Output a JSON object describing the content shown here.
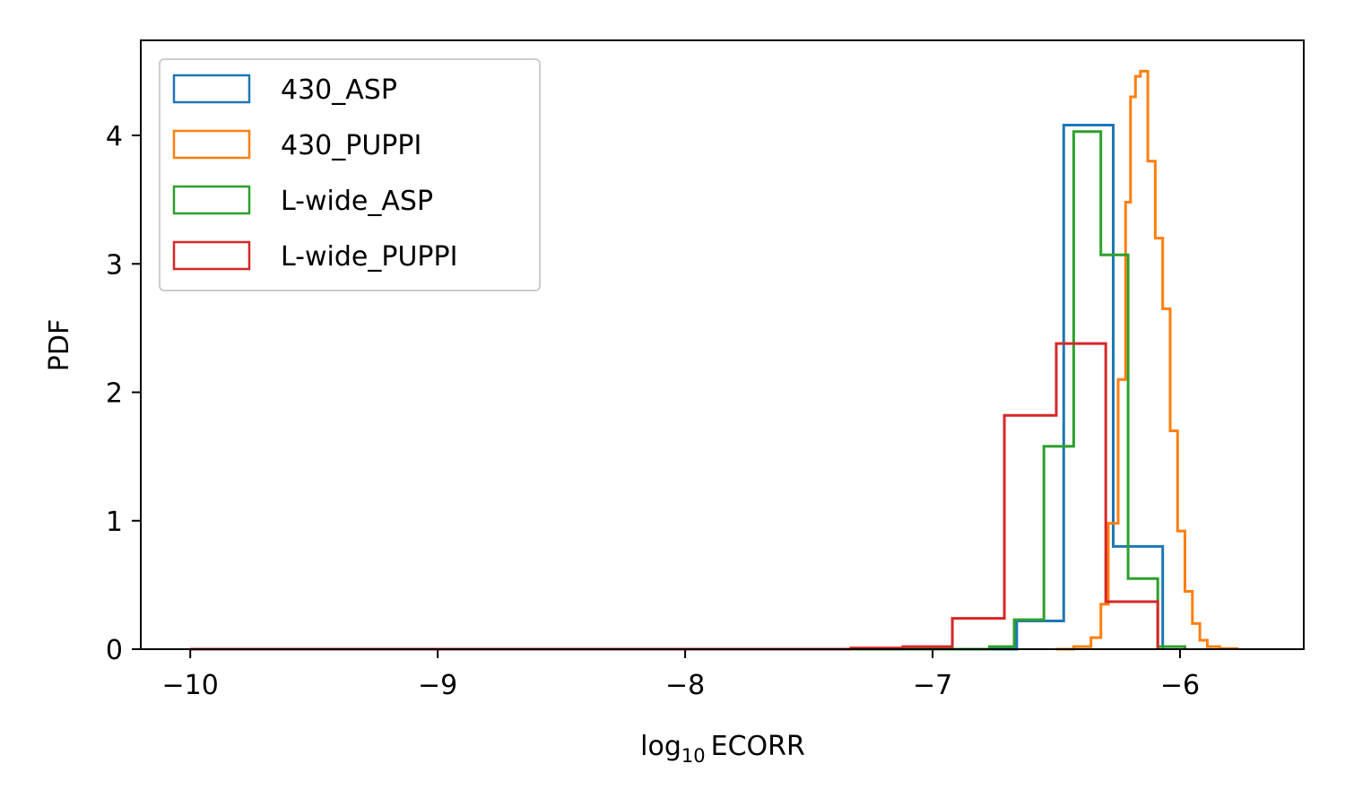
{
  "chart_data": {
    "type": "histogram",
    "title": "",
    "xlabel_base": "log",
    "xlabel_sub": "10",
    "xlabel_rest": "ECORR",
    "ylabel": "PDF",
    "xlim": [
      -10.2,
      -5.5
    ],
    "ylim": [
      0,
      4.74
    ],
    "xticks": [
      -10,
      -9,
      -8,
      -7,
      -6
    ],
    "xtick_labels": [
      "−10",
      "−9",
      "−8",
      "−7",
      "−6"
    ],
    "yticks": [
      0,
      1,
      2,
      3,
      4
    ],
    "ytick_labels": [
      "0",
      "1",
      "2",
      "3",
      "4"
    ],
    "legend_position": "upper-left",
    "series": [
      {
        "name": "430_ASP",
        "color": "#1f77b4",
        "steps": [
          [
            -10,
            0
          ],
          [
            -6.66,
            0
          ],
          [
            -6.66,
            0.22
          ],
          [
            -6.47,
            0.22
          ],
          [
            -6.47,
            4.08
          ],
          [
            -6.27,
            4.08
          ],
          [
            -6.27,
            0.8
          ],
          [
            -6.07,
            0.8
          ],
          [
            -6.07,
            0
          ]
        ]
      },
      {
        "name": "430_PUPPI",
        "color": "#ff7f0e",
        "steps": [
          [
            -6.5,
            0
          ],
          [
            -6.43,
            0
          ],
          [
            -6.43,
            0.02
          ],
          [
            -6.36,
            0.02
          ],
          [
            -6.36,
            0.09
          ],
          [
            -6.32,
            0.09
          ],
          [
            -6.32,
            0.35
          ],
          [
            -6.29,
            0.35
          ],
          [
            -6.29,
            0.98
          ],
          [
            -6.25,
            0.98
          ],
          [
            -6.25,
            2.1
          ],
          [
            -6.22,
            2.1
          ],
          [
            -6.22,
            3.48
          ],
          [
            -6.2,
            3.48
          ],
          [
            -6.2,
            4.3
          ],
          [
            -6.18,
            4.3
          ],
          [
            -6.18,
            4.46
          ],
          [
            -6.16,
            4.46
          ],
          [
            -6.16,
            4.5
          ],
          [
            -6.13,
            4.5
          ],
          [
            -6.13,
            3.8
          ],
          [
            -6.1,
            3.8
          ],
          [
            -6.1,
            3.2
          ],
          [
            -6.07,
            3.2
          ],
          [
            -6.07,
            2.65
          ],
          [
            -6.04,
            2.65
          ],
          [
            -6.04,
            1.7
          ],
          [
            -6.01,
            1.7
          ],
          [
            -6.01,
            0.92
          ],
          [
            -5.98,
            0.92
          ],
          [
            -5.98,
            0.45
          ],
          [
            -5.95,
            0.45
          ],
          [
            -5.95,
            0.2
          ],
          [
            -5.92,
            0.2
          ],
          [
            -5.92,
            0.07
          ],
          [
            -5.89,
            0.07
          ],
          [
            -5.89,
            0.02
          ],
          [
            -5.84,
            0.02
          ],
          [
            -5.84,
            0.005
          ],
          [
            -5.77,
            0.005
          ],
          [
            -5.77,
            0
          ]
        ]
      },
      {
        "name": "L-wide_ASP",
        "color": "#2ca02c",
        "steps": [
          [
            -10,
            0
          ],
          [
            -6.77,
            0
          ],
          [
            -6.77,
            0.02
          ],
          [
            -6.67,
            0.02
          ],
          [
            -6.67,
            0.23
          ],
          [
            -6.55,
            0.23
          ],
          [
            -6.55,
            1.58
          ],
          [
            -6.43,
            1.58
          ],
          [
            -6.43,
            4.03
          ],
          [
            -6.32,
            4.03
          ],
          [
            -6.32,
            3.07
          ],
          [
            -6.21,
            3.07
          ],
          [
            -6.21,
            0.55
          ],
          [
            -6.09,
            0.55
          ],
          [
            -6.09,
            0.02
          ],
          [
            -5.98,
            0.02
          ],
          [
            -5.98,
            0
          ]
        ]
      },
      {
        "name": "L-wide_PUPPI",
        "color": "#d62728",
        "steps": [
          [
            -10,
            0
          ],
          [
            -7.33,
            0
          ],
          [
            -7.33,
            0.01
          ],
          [
            -7.12,
            0.01
          ],
          [
            -7.12,
            0.02
          ],
          [
            -6.92,
            0.02
          ],
          [
            -6.92,
            0.24
          ],
          [
            -6.71,
            0.24
          ],
          [
            -6.71,
            1.82
          ],
          [
            -6.5,
            1.82
          ],
          [
            -6.5,
            2.38
          ],
          [
            -6.3,
            2.38
          ],
          [
            -6.3,
            0.37
          ],
          [
            -6.09,
            0.37
          ],
          [
            -6.09,
            0
          ]
        ]
      }
    ]
  }
}
